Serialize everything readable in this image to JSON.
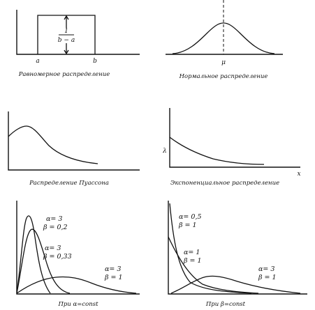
{
  "panels": {
    "uniform": {
      "caption": "Равномерное распределение",
      "label_a": "a",
      "label_b": "b",
      "height_num": "1",
      "height_den": "b − a"
    },
    "normal": {
      "caption": "Нормальное распределение",
      "label_mu": "μ"
    },
    "poisson": {
      "caption": "Распределение Пуассона"
    },
    "exponential": {
      "caption": "Экспоненциальное распределение",
      "label_lambda": "λ",
      "label_x": "x"
    },
    "gamma_alpha": {
      "caption": "При α=const",
      "curves": [
        {
          "alpha": "α= 3",
          "beta": "β = 0,2"
        },
        {
          "alpha": "α= 3",
          "beta": "β = 0,33"
        },
        {
          "alpha": "α= 3",
          "beta": "β = 1"
        }
      ]
    },
    "gamma_beta": {
      "caption": "При β=const",
      "curves": [
        {
          "alpha": "α= 0,5",
          "beta": "β = 1"
        },
        {
          "alpha": "α= 1",
          "beta": "β = 1"
        },
        {
          "alpha": "α= 3",
          "beta": "β = 1"
        }
      ]
    }
  }
}
